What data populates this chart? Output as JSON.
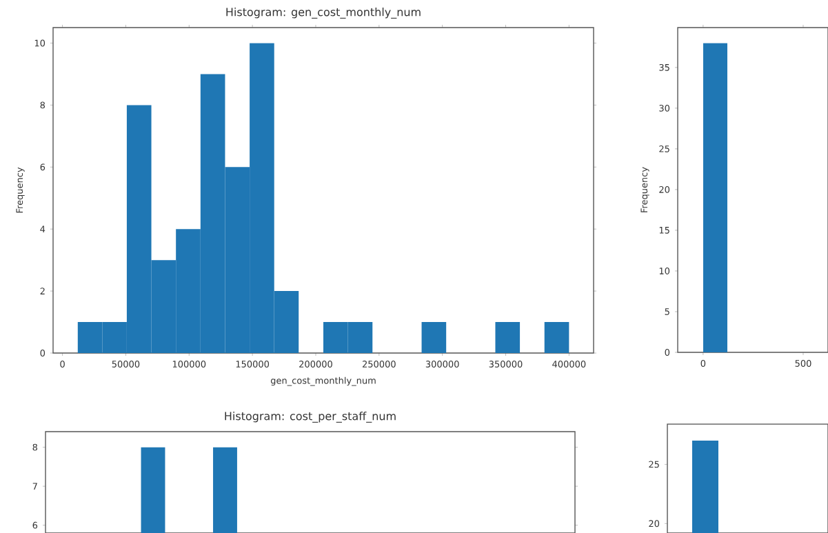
{
  "chart_data": [
    {
      "type": "histogram",
      "title": "Histogram: gen_cost_monthly_num",
      "xlabel": "gen_cost_monthly_num",
      "ylabel": "Frequency",
      "color": "#1f77b4",
      "bins": [
        12000,
        31400,
        50800,
        70200,
        89600,
        109000,
        128400,
        147800,
        167200,
        186600,
        206000,
        225400,
        244800,
        264200,
        283600,
        303000,
        322400,
        341800,
        361200,
        380600,
        400000
      ],
      "values": [
        1,
        1,
        8,
        3,
        4,
        9,
        6,
        10,
        2,
        0,
        1,
        1,
        0,
        0,
        1,
        0,
        0,
        1,
        0,
        1
      ],
      "xlim": [
        -7400,
        419400
      ],
      "ylim": [
        0,
        10.5
      ],
      "xticks": [
        0,
        50000,
        100000,
        150000,
        200000,
        250000,
        300000,
        350000,
        400000
      ],
      "yticks": [
        0,
        2,
        4,
        6,
        8,
        10
      ]
    },
    {
      "type": "histogram",
      "ylabel": "Frequency",
      "color": "#1f77b4",
      "bins": [
        0,
        121
      ],
      "values": [
        38
      ],
      "xlim": [
        -127,
        624
      ],
      "ylim": [
        0,
        39.9
      ],
      "xticks": [
        0,
        500
      ],
      "yticks": [
        0,
        5,
        10,
        15,
        20,
        25,
        30,
        35
      ]
    },
    {
      "type": "bar",
      "title": "Histogram: cost_per_staff_num",
      "color": "#1f77b4",
      "categories": [
        null,
        null
      ],
      "values": [
        8,
        8
      ],
      "ylim": [
        5.8,
        8.4
      ],
      "yticks": [
        6,
        7,
        8
      ],
      "tick_labels": "y"
    },
    {
      "type": "bar",
      "color": "#1f77b4",
      "categories": [
        null
      ],
      "values": [
        27
      ],
      "ylim": [
        19.2,
        28.4
      ],
      "yticks": [
        20,
        25
      ],
      "tick_labels": "y"
    }
  ]
}
